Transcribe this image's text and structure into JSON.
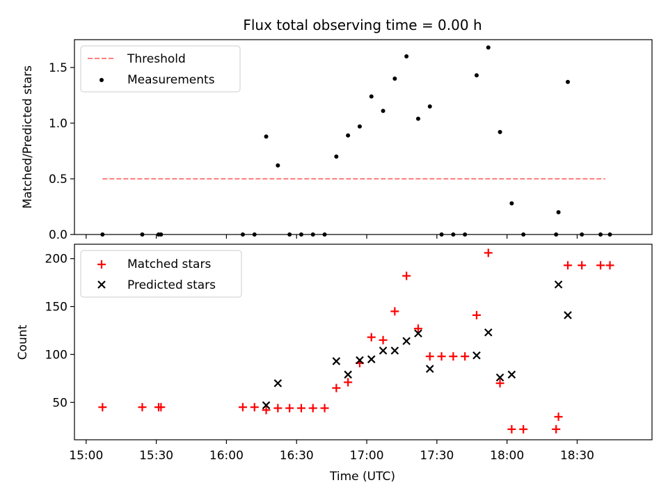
{
  "title": "Flux total observing time = 0.00 h",
  "x_axis": {
    "label": "Time (UTC)",
    "ticks": [
      "15:00",
      "15:30",
      "16:00",
      "16:30",
      "17:00",
      "17:30",
      "18:00",
      "18:30"
    ]
  },
  "colors": {
    "threshold": "#ff7f7f",
    "measurements": "#000000",
    "matched": "#ff0000",
    "predicted": "#000000"
  },
  "chart_data": [
    {
      "type": "scatter",
      "panel": "top",
      "ylabel": "Matched/Predicted stars",
      "yticks": [
        "0.0",
        "0.5",
        "1.0",
        "1.5"
      ],
      "ytick_values": [
        0,
        0.5,
        1.0,
        1.5
      ],
      "xlim": [
        "14:55",
        "19:02"
      ],
      "ylim": [
        0,
        1.75
      ],
      "legend_position": "upper left",
      "threshold": {
        "name": "Threshold",
        "value": 0.5,
        "x_range": [
          "15:07",
          "18:42"
        ]
      },
      "series": [
        {
          "name": "Measurements",
          "points": [
            {
              "x": "15:07",
              "y": 0.0
            },
            {
              "x": "15:24",
              "y": 0.0
            },
            {
              "x": "15:31",
              "y": 0.0
            },
            {
              "x": "15:32",
              "y": 0.0
            },
            {
              "x": "16:07",
              "y": 0.0
            },
            {
              "x": "16:12",
              "y": 0.0
            },
            {
              "x": "16:17",
              "y": 0.88
            },
            {
              "x": "16:22",
              "y": 0.62
            },
            {
              "x": "16:27",
              "y": 0.0
            },
            {
              "x": "16:32",
              "y": 0.0
            },
            {
              "x": "16:37",
              "y": 0.0
            },
            {
              "x": "16:42",
              "y": 0.0
            },
            {
              "x": "16:47",
              "y": 0.7
            },
            {
              "x": "16:52",
              "y": 0.89
            },
            {
              "x": "16:57",
              "y": 0.97
            },
            {
              "x": "17:02",
              "y": 1.24
            },
            {
              "x": "17:07",
              "y": 1.11
            },
            {
              "x": "17:12",
              "y": 1.4
            },
            {
              "x": "17:17",
              "y": 1.6
            },
            {
              "x": "17:22",
              "y": 1.04
            },
            {
              "x": "17:27",
              "y": 1.15
            },
            {
              "x": "17:32",
              "y": 0.0
            },
            {
              "x": "17:37",
              "y": 0.0
            },
            {
              "x": "17:42",
              "y": 0.0
            },
            {
              "x": "17:47",
              "y": 1.43
            },
            {
              "x": "17:52",
              "y": 1.68
            },
            {
              "x": "17:57",
              "y": 0.92
            },
            {
              "x": "18:02",
              "y": 0.28
            },
            {
              "x": "18:07",
              "y": 0.0
            },
            {
              "x": "18:21",
              "y": 0.0
            },
            {
              "x": "18:22",
              "y": 0.2
            },
            {
              "x": "18:26",
              "y": 1.37
            },
            {
              "x": "18:32",
              "y": 0.0
            },
            {
              "x": "18:40",
              "y": 0.0
            },
            {
              "x": "18:44",
              "y": 0.0
            }
          ]
        }
      ]
    },
    {
      "type": "scatter",
      "panel": "bottom",
      "xlabel": "Time (UTC)",
      "ylabel": "Count",
      "yticks": [
        "50",
        "100",
        "150",
        "200"
      ],
      "ytick_values": [
        50,
        100,
        150,
        200
      ],
      "xlim": [
        "14:55",
        "19:02"
      ],
      "ylim": [
        11,
        215
      ],
      "legend_position": "upper left",
      "series": [
        {
          "name": "Matched stars",
          "marker": "plus",
          "points": [
            {
              "x": "15:07",
              "y": 45
            },
            {
              "x": "15:24",
              "y": 45
            },
            {
              "x": "15:31",
              "y": 45
            },
            {
              "x": "15:32",
              "y": 45
            },
            {
              "x": "16:07",
              "y": 45
            },
            {
              "x": "16:12",
              "y": 45
            },
            {
              "x": "16:17",
              "y": 42
            },
            {
              "x": "16:22",
              "y": 44
            },
            {
              "x": "16:27",
              "y": 44
            },
            {
              "x": "16:32",
              "y": 44
            },
            {
              "x": "16:37",
              "y": 44
            },
            {
              "x": "16:42",
              "y": 44
            },
            {
              "x": "16:47",
              "y": 65
            },
            {
              "x": "16:52",
              "y": 71
            },
            {
              "x": "16:57",
              "y": 91
            },
            {
              "x": "17:02",
              "y": 118
            },
            {
              "x": "17:07",
              "y": 115
            },
            {
              "x": "17:12",
              "y": 145
            },
            {
              "x": "17:17",
              "y": 182
            },
            {
              "x": "17:22",
              "y": 127
            },
            {
              "x": "17:27",
              "y": 98
            },
            {
              "x": "17:32",
              "y": 98
            },
            {
              "x": "17:37",
              "y": 98
            },
            {
              "x": "17:42",
              "y": 98
            },
            {
              "x": "17:47",
              "y": 141
            },
            {
              "x": "17:52",
              "y": 206
            },
            {
              "x": "17:57",
              "y": 70
            },
            {
              "x": "18:02",
              "y": 22
            },
            {
              "x": "18:07",
              "y": 22
            },
            {
              "x": "18:21",
              "y": 22
            },
            {
              "x": "18:22",
              "y": 35
            },
            {
              "x": "18:26",
              "y": 193
            },
            {
              "x": "18:32",
              "y": 193
            },
            {
              "x": "18:40",
              "y": 193
            },
            {
              "x": "18:44",
              "y": 193
            }
          ]
        },
        {
          "name": "Predicted stars",
          "marker": "x",
          "points": [
            {
              "x": "16:17",
              "y": 47
            },
            {
              "x": "16:22",
              "y": 70
            },
            {
              "x": "16:47",
              "y": 93
            },
            {
              "x": "16:52",
              "y": 79
            },
            {
              "x": "16:57",
              "y": 94
            },
            {
              "x": "17:02",
              "y": 95
            },
            {
              "x": "17:07",
              "y": 104
            },
            {
              "x": "17:12",
              "y": 104
            },
            {
              "x": "17:17",
              "y": 114
            },
            {
              "x": "17:22",
              "y": 122
            },
            {
              "x": "17:27",
              "y": 85
            },
            {
              "x": "17:47",
              "y": 99
            },
            {
              "x": "17:52",
              "y": 123
            },
            {
              "x": "17:57",
              "y": 76
            },
            {
              "x": "18:02",
              "y": 79
            },
            {
              "x": "18:22",
              "y": 173
            },
            {
              "x": "18:26",
              "y": 141
            }
          ]
        }
      ]
    }
  ]
}
